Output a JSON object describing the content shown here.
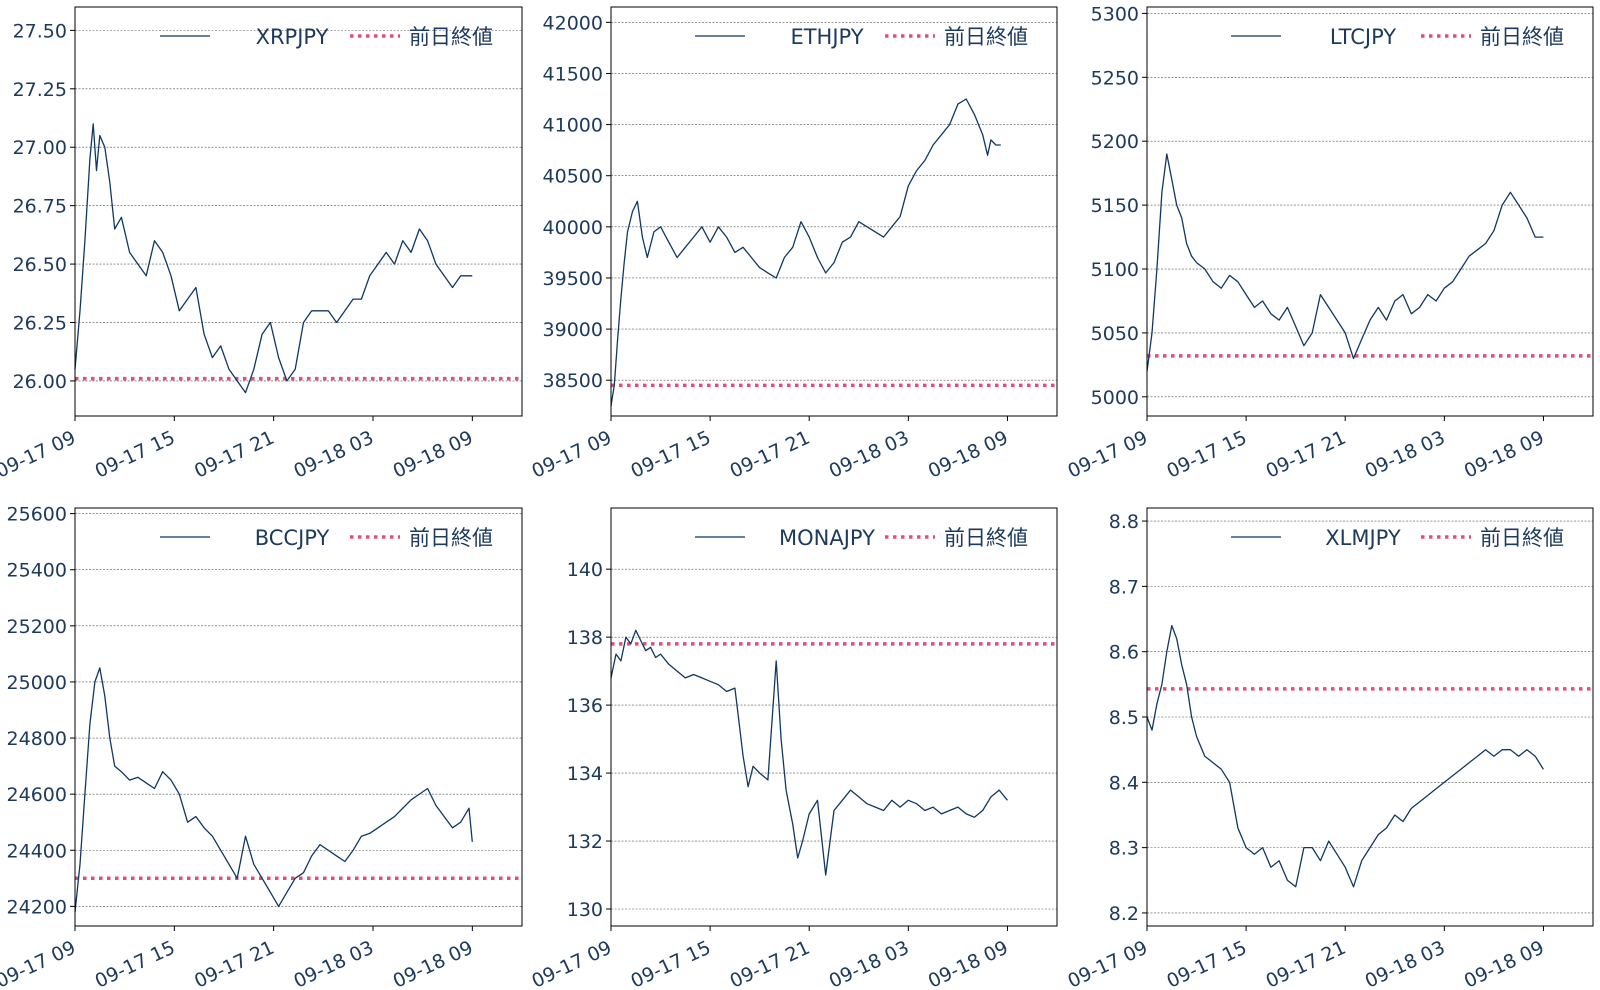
{
  "chart_data": [
    {
      "type": "line",
      "xlabel": "",
      "ylabel": "",
      "x_ticks": [
        "09-17 09",
        "09-17 15",
        "09-17 21",
        "09-18 03",
        "09-18 09"
      ],
      "legend": [
        "XRPJPY",
        "前日終値"
      ],
      "legend_placement": "top-right",
      "grid": "horizontal",
      "ylim": [
        25.85,
        27.6
      ],
      "y_ticks": [
        26.0,
        26.25,
        26.5,
        26.75,
        27.0,
        27.25,
        27.5
      ],
      "y_tick_labels": [
        "26.00",
        "26.25",
        "26.50",
        "26.75",
        "27.00",
        "27.25",
        "27.50"
      ],
      "prev_close": 26.01,
      "series": [
        {
          "name": "XRPJPY",
          "x": [
            0,
            0.3,
            0.6,
            0.9,
            1.1,
            1.3,
            1.5,
            1.8,
            2.1,
            2.4,
            2.8,
            3.3,
            3.8,
            4.3,
            4.8,
            5.3,
            5.8,
            6.3,
            6.8,
            7.3,
            7.8,
            8.3,
            8.8,
            9.3,
            9.8,
            10.3,
            10.8,
            11.3,
            11.8,
            12.3,
            12.8,
            13.3,
            13.8,
            14.3,
            14.8,
            15.3,
            15.8,
            16.3,
            16.8,
            17.3,
            17.8,
            18.3,
            18.8,
            19.3,
            19.8,
            20.3,
            20.8,
            21.3,
            21.8,
            22.3,
            22.8,
            23.3,
            23.8,
            24.0
          ],
          "y": [
            26.05,
            26.3,
            26.6,
            26.95,
            27.1,
            26.9,
            27.05,
            27.0,
            26.85,
            26.65,
            26.7,
            26.55,
            26.5,
            26.45,
            26.6,
            26.55,
            26.45,
            26.3,
            26.35,
            26.4,
            26.2,
            26.1,
            26.15,
            26.05,
            26.0,
            25.95,
            26.05,
            26.2,
            26.25,
            26.1,
            26.0,
            26.05,
            26.25,
            26.3,
            26.3,
            26.3,
            26.25,
            26.3,
            26.35,
            26.35,
            26.45,
            26.5,
            26.55,
            26.5,
            26.6,
            26.55,
            26.65,
            26.6,
            26.5,
            26.45,
            26.4,
            26.45,
            26.45,
            26.45
          ]
        }
      ]
    },
    {
      "type": "line",
      "xlabel": "",
      "ylabel": "",
      "x_ticks": [
        "09-17 09",
        "09-17 15",
        "09-17 21",
        "09-18 03",
        "09-18 09"
      ],
      "legend": [
        "ETHJPY",
        "前日終値"
      ],
      "legend_placement": "top-right",
      "grid": "horizontal",
      "ylim": [
        38150,
        42150
      ],
      "y_ticks": [
        38500,
        39000,
        39500,
        40000,
        40500,
        41000,
        41500,
        42000
      ],
      "y_tick_labels": [
        "38500",
        "39000",
        "39500",
        "40000",
        "40500",
        "41000",
        "41500",
        "42000"
      ],
      "prev_close": 38450,
      "series": [
        {
          "name": "ETHJPY",
          "x": [
            0,
            0.2,
            0.4,
            0.6,
            0.8,
            1.0,
            1.3,
            1.6,
            1.9,
            2.2,
            2.6,
            3.0,
            3.5,
            4.0,
            4.5,
            5.0,
            5.5,
            6.0,
            6.5,
            7.0,
            7.5,
            8.0,
            8.5,
            9.0,
            9.5,
            10.0,
            10.5,
            11.0,
            11.5,
            12.0,
            12.5,
            13.0,
            13.5,
            14.0,
            14.5,
            15.0,
            15.5,
            16.0,
            16.5,
            17.0,
            17.5,
            18.0,
            18.5,
            19.0,
            19.5,
            20.0,
            20.5,
            21.0,
            21.5,
            22.0,
            22.5,
            22.8,
            23.0,
            23.3,
            23.6
          ],
          "y": [
            38250,
            38450,
            38900,
            39300,
            39650,
            39950,
            40150,
            40250,
            39900,
            39700,
            39950,
            40000,
            39850,
            39700,
            39800,
            39900,
            40000,
            39850,
            40000,
            39900,
            39750,
            39800,
            39700,
            39600,
            39550,
            39500,
            39700,
            39800,
            40050,
            39900,
            39700,
            39550,
            39650,
            39850,
            39900,
            40050,
            40000,
            39950,
            39900,
            40000,
            40100,
            40400,
            40550,
            40650,
            40800,
            40900,
            41000,
            41200,
            41250,
            41100,
            40900,
            40700,
            40850,
            40800,
            40800
          ]
        }
      ]
    },
    {
      "type": "line",
      "xlabel": "",
      "ylabel": "",
      "x_ticks": [
        "09-17 09",
        "09-17 15",
        "09-17 21",
        "09-18 03",
        "09-18 09"
      ],
      "legend": [
        "LTCJPY",
        "前日終値"
      ],
      "legend_placement": "top-right",
      "grid": "horizontal",
      "ylim": [
        4985,
        5305
      ],
      "y_ticks": [
        5000,
        5050,
        5100,
        5150,
        5200,
        5250,
        5300
      ],
      "y_tick_labels": [
        "5000",
        "5050",
        "5100",
        "5150",
        "5200",
        "5250",
        "5300"
      ],
      "prev_close": 5032,
      "series": [
        {
          "name": "LTCJPY",
          "x": [
            0,
            0.3,
            0.6,
            0.9,
            1.2,
            1.5,
            1.8,
            2.1,
            2.4,
            2.7,
            3.0,
            3.5,
            4.0,
            4.5,
            5.0,
            5.5,
            6.0,
            6.5,
            7.0,
            7.5,
            8.0,
            8.5,
            9.0,
            9.5,
            10.0,
            10.5,
            11.0,
            11.5,
            12.0,
            12.5,
            13.0,
            13.5,
            14.0,
            14.5,
            15.0,
            15.5,
            16.0,
            16.5,
            17.0,
            17.5,
            18.0,
            18.5,
            19.0,
            19.5,
            20.0,
            20.5,
            21.0,
            21.5,
            22.0,
            22.5,
            23.0,
            23.5,
            24.0
          ],
          "y": [
            5020,
            5050,
            5100,
            5160,
            5190,
            5170,
            5150,
            5140,
            5120,
            5110,
            5105,
            5100,
            5090,
            5085,
            5095,
            5090,
            5080,
            5070,
            5075,
            5065,
            5060,
            5070,
            5055,
            5040,
            5050,
            5080,
            5070,
            5060,
            5050,
            5030,
            5045,
            5060,
            5070,
            5060,
            5075,
            5080,
            5065,
            5070,
            5080,
            5075,
            5085,
            5090,
            5100,
            5110,
            5115,
            5120,
            5130,
            5150,
            5160,
            5150,
            5140,
            5125,
            5125
          ]
        }
      ]
    },
    {
      "type": "line",
      "xlabel": "",
      "ylabel": "",
      "x_ticks": [
        "09-17 09",
        "09-17 15",
        "09-17 21",
        "09-18 03",
        "09-18 09"
      ],
      "legend": [
        "BCCJPY",
        "前日終値"
      ],
      "legend_placement": "top-right",
      "grid": "horizontal",
      "ylim": [
        24130,
        25620
      ],
      "y_ticks": [
        24200,
        24400,
        24600,
        24800,
        25000,
        25200,
        25400,
        25600
      ],
      "y_tick_labels": [
        "24200",
        "24400",
        "24600",
        "24800",
        "25000",
        "25200",
        "25400",
        "25600"
      ],
      "prev_close": 24300,
      "series": [
        {
          "name": "BCCJPY",
          "x": [
            0,
            0.3,
            0.6,
            0.9,
            1.2,
            1.5,
            1.8,
            2.1,
            2.4,
            2.8,
            3.3,
            3.8,
            4.3,
            4.8,
            5.3,
            5.8,
            6.3,
            6.8,
            7.3,
            7.8,
            8.3,
            8.8,
            9.3,
            9.8,
            10.3,
            10.8,
            11.3,
            11.8,
            12.3,
            12.8,
            13.3,
            13.8,
            14.3,
            14.8,
            15.3,
            15.8,
            16.3,
            16.8,
            17.3,
            17.8,
            18.3,
            18.8,
            19.3,
            19.8,
            20.3,
            20.8,
            21.3,
            21.8,
            22.3,
            22.8,
            23.3,
            23.8,
            24.0
          ],
          "y": [
            24180,
            24350,
            24600,
            24850,
            25000,
            25050,
            24950,
            24800,
            24700,
            24680,
            24650,
            24660,
            24640,
            24620,
            24680,
            24650,
            24600,
            24500,
            24520,
            24480,
            24450,
            24400,
            24350,
            24300,
            24450,
            24350,
            24300,
            24250,
            24200,
            24250,
            24300,
            24320,
            24380,
            24420,
            24400,
            24380,
            24360,
            24400,
            24450,
            24460,
            24480,
            24500,
            24520,
            24550,
            24580,
            24600,
            24620,
            24560,
            24520,
            24480,
            24500,
            24550,
            24430
          ]
        }
      ]
    },
    {
      "type": "line",
      "xlabel": "",
      "ylabel": "",
      "x_ticks": [
        "09-17 09",
        "09-17 15",
        "09-17 21",
        "09-18 03",
        "09-18 09"
      ],
      "legend": [
        "MONAJPY",
        "前日終値"
      ],
      "legend_placement": "top-right",
      "grid": "horizontal",
      "ylim": [
        129.5,
        141.8
      ],
      "y_ticks": [
        130,
        132,
        134,
        136,
        138,
        140
      ],
      "y_tick_labels": [
        "130",
        "132",
        "134",
        "136",
        "138",
        "140"
      ],
      "prev_close": 137.8,
      "series": [
        {
          "name": "MONAJPY",
          "x": [
            0,
            0.3,
            0.6,
            0.9,
            1.2,
            1.5,
            1.8,
            2.1,
            2.4,
            2.7,
            3.0,
            3.5,
            4.0,
            4.5,
            5.0,
            5.5,
            6.0,
            6.5,
            7.0,
            7.5,
            8.0,
            8.3,
            8.6,
            9.0,
            9.5,
            10.0,
            10.3,
            10.6,
            11.0,
            11.3,
            11.6,
            12.0,
            12.5,
            13.0,
            13.5,
            14.0,
            14.5,
            15.0,
            15.5,
            16.0,
            16.5,
            17.0,
            17.5,
            18.0,
            18.5,
            19.0,
            19.5,
            20.0,
            20.5,
            21.0,
            21.5,
            22.0,
            22.5,
            23.0,
            23.5,
            24.0
          ],
          "y": [
            136.8,
            137.5,
            137.3,
            138.0,
            137.8,
            138.2,
            137.9,
            137.6,
            137.7,
            137.4,
            137.5,
            137.2,
            137.0,
            136.8,
            136.9,
            136.8,
            136.7,
            136.6,
            136.4,
            136.5,
            134.5,
            133.6,
            134.2,
            134.0,
            133.8,
            137.3,
            135.0,
            133.5,
            132.5,
            131.5,
            132.0,
            132.8,
            133.2,
            131.0,
            132.9,
            133.2,
            133.5,
            133.3,
            133.1,
            133.0,
            132.9,
            133.2,
            133.0,
            133.2,
            133.1,
            132.9,
            133.0,
            132.8,
            132.9,
            133.0,
            132.8,
            132.7,
            132.9,
            133.3,
            133.5,
            133.2
          ]
        }
      ]
    },
    {
      "type": "line",
      "xlabel": "",
      "ylabel": "",
      "x_ticks": [
        "09-17 09",
        "09-17 15",
        "09-17 21",
        "09-18 03",
        "09-18 09"
      ],
      "legend": [
        "XLMJPY",
        "前日終値"
      ],
      "legend_placement": "top-right",
      "grid": "horizontal",
      "ylim": [
        8.18,
        8.82
      ],
      "y_ticks": [
        8.2,
        8.3,
        8.4,
        8.5,
        8.6,
        8.7,
        8.8
      ],
      "y_tick_labels": [
        "8.2",
        "8.3",
        "8.4",
        "8.5",
        "8.6",
        "8.7",
        "8.8"
      ],
      "prev_close": 8.543,
      "series": [
        {
          "name": "XLMJPY",
          "x": [
            0,
            0.3,
            0.6,
            0.9,
            1.2,
            1.5,
            1.8,
            2.1,
            2.4,
            2.7,
            3.0,
            3.5,
            4.0,
            4.5,
            5.0,
            5.5,
            6.0,
            6.5,
            7.0,
            7.5,
            8.0,
            8.5,
            9.0,
            9.5,
            10.0,
            10.5,
            11.0,
            11.5,
            12.0,
            12.5,
            13.0,
            13.5,
            14.0,
            14.5,
            15.0,
            15.5,
            16.0,
            16.5,
            17.0,
            17.5,
            18.0,
            18.5,
            19.0,
            19.5,
            20.0,
            20.5,
            21.0,
            21.5,
            22.0,
            22.5,
            23.0,
            23.5,
            24.0
          ],
          "y": [
            8.5,
            8.48,
            8.52,
            8.55,
            8.6,
            8.64,
            8.62,
            8.58,
            8.55,
            8.5,
            8.47,
            8.44,
            8.43,
            8.42,
            8.4,
            8.33,
            8.3,
            8.29,
            8.3,
            8.27,
            8.28,
            8.25,
            8.24,
            8.3,
            8.3,
            8.28,
            8.31,
            8.29,
            8.27,
            8.24,
            8.28,
            8.3,
            8.32,
            8.33,
            8.35,
            8.34,
            8.36,
            8.37,
            8.38,
            8.39,
            8.4,
            8.41,
            8.42,
            8.43,
            8.44,
            8.45,
            8.44,
            8.45,
            8.45,
            8.44,
            8.45,
            8.44,
            8.42
          ]
        }
      ]
    }
  ],
  "colors": {
    "price_line": "#0f3864",
    "prev_close_line": "#e04f7a",
    "axis_text": "#1c3a5e",
    "grid": "#555555",
    "axes_frame": "#000000"
  }
}
